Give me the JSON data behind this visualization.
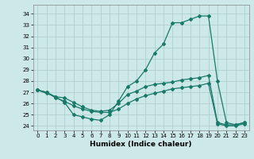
{
  "xlabel": "Humidex (Indice chaleur)",
  "bg_color": "#cce8e8",
  "grid_color": "#aacccc",
  "line_color": "#1a7a6a",
  "xlim": [
    -0.5,
    23.5
  ],
  "ylim": [
    23.6,
    34.8
  ],
  "yticks": [
    24,
    25,
    26,
    27,
    28,
    29,
    30,
    31,
    32,
    33,
    34
  ],
  "xticks": [
    0,
    1,
    2,
    3,
    4,
    5,
    6,
    7,
    8,
    9,
    10,
    11,
    12,
    13,
    14,
    15,
    16,
    17,
    18,
    19,
    20,
    21,
    22,
    23
  ],
  "curves": [
    {
      "x": [
        0,
        1,
        2,
        3,
        4,
        5,
        6,
        7,
        8,
        9,
        10,
        11,
        12,
        13,
        14,
        15,
        16,
        17,
        18,
        19,
        20,
        21,
        22,
        23
      ],
      "y": [
        27.2,
        27.0,
        26.6,
        26.1,
        25.0,
        24.8,
        24.6,
        24.5,
        25.0,
        26.2,
        27.5,
        28.0,
        29.0,
        30.5,
        31.3,
        33.2,
        33.2,
        33.5,
        33.8,
        33.8,
        28.0,
        24.3,
        24.1,
        24.3
      ]
    },
    {
      "x": [
        0,
        1,
        2,
        3,
        4,
        5,
        6,
        7,
        8,
        9,
        10,
        11,
        12,
        13,
        14,
        15,
        16,
        17,
        18,
        19,
        20,
        21,
        22,
        23
      ],
      "y": [
        27.2,
        26.9,
        26.6,
        26.5,
        26.1,
        25.7,
        25.4,
        25.3,
        25.4,
        26.0,
        26.8,
        27.1,
        27.5,
        27.7,
        27.8,
        27.9,
        28.1,
        28.2,
        28.3,
        28.5,
        24.3,
        24.1,
        24.1,
        24.3
      ]
    },
    {
      "x": [
        0,
        1,
        2,
        3,
        4,
        5,
        6,
        7,
        8,
        9,
        10,
        11,
        12,
        13,
        14,
        15,
        16,
        17,
        18,
        19,
        20,
        21,
        22,
        23
      ],
      "y": [
        27.2,
        27.0,
        26.5,
        26.2,
        25.8,
        25.5,
        25.3,
        25.2,
        25.2,
        25.5,
        26.0,
        26.4,
        26.7,
        26.9,
        27.1,
        27.3,
        27.4,
        27.5,
        27.6,
        27.8,
        24.2,
        24.0,
        24.0,
        24.2
      ]
    }
  ],
  "font_size_ticks": 5.0,
  "font_size_xlabel": 6.5
}
